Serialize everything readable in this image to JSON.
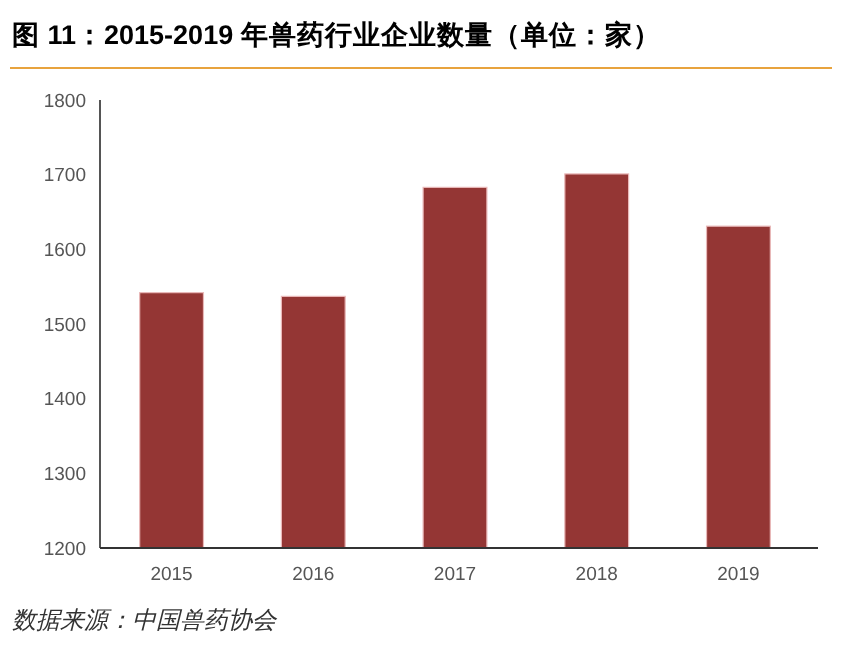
{
  "chart_data": {
    "type": "bar",
    "title": "图 11：2015-2019 年兽药行业企业数量（单位：家）",
    "categories": [
      "2015",
      "2016",
      "2017",
      "2018",
      "2019"
    ],
    "values": [
      1542,
      1537,
      1683,
      1701,
      1631
    ],
    "color": "#943634",
    "ylim": [
      1200,
      1800
    ],
    "yticks": [
      1200,
      1300,
      1400,
      1500,
      1600,
      1700,
      1800
    ],
    "grid": false,
    "annotations": [
      "数据来源：中国兽药协会"
    ]
  }
}
